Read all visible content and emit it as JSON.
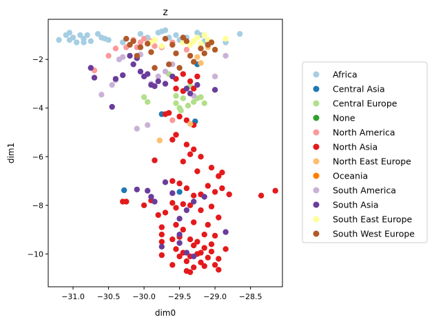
{
  "chart_data": {
    "type": "scatter",
    "title": "z",
    "xlabel": "dim0",
    "ylabel": "dim1",
    "xlim": [
      -31.35,
      -28.05
    ],
    "ylim": [
      -11.35,
      -0.35
    ],
    "xticks": [
      -31.0,
      -30.5,
      -30.0,
      -29.5,
      -29.0,
      -28.5
    ],
    "xtick_labels": [
      "−31.0",
      "−30.5",
      "−30.0",
      "−29.5",
      "−29.0",
      "−28.5"
    ],
    "yticks": [
      -10,
      -8,
      -6,
      -4,
      -2
    ],
    "ytick_labels": [
      "−10",
      "−8",
      "−6",
      "−4",
      "−2"
    ],
    "grid": false,
    "legend_position": "right",
    "series": [
      {
        "name": "Africa",
        "color": "#a6cee3",
        "points": [
          [
            -31.2,
            -1.2
          ],
          [
            -31.1,
            -1.0
          ],
          [
            -31.05,
            -0.9
          ],
          [
            -31.0,
            -1.1
          ],
          [
            -30.95,
            -1.3
          ],
          [
            -30.9,
            -1.0
          ],
          [
            -30.85,
            -1.15
          ],
          [
            -30.8,
            -1.0
          ],
          [
            -30.75,
            -1.25
          ],
          [
            -30.65,
            -0.95
          ],
          [
            -30.6,
            -1.1
          ],
          [
            -30.55,
            -1.15
          ],
          [
            -30.5,
            -1.2
          ],
          [
            -30.3,
            -1.3
          ],
          [
            -30.05,
            -0.95
          ],
          [
            -29.95,
            -1.1
          ],
          [
            -29.8,
            -0.9
          ],
          [
            -29.75,
            -0.85
          ],
          [
            -29.7,
            -0.8
          ],
          [
            -29.65,
            -1.1
          ],
          [
            -29.55,
            -1.0
          ],
          [
            -29.5,
            -1.2
          ],
          [
            -29.4,
            -1.1
          ],
          [
            -29.25,
            -0.9
          ],
          [
            -29.2,
            -1.0
          ],
          [
            -29.15,
            -1.25
          ],
          [
            -28.85,
            -1.3
          ],
          [
            -28.65,
            -0.95
          ],
          [
            -31.05,
            -1.2
          ],
          [
            -30.85,
            -1.3
          ]
        ]
      },
      {
        "name": "Central Asia",
        "color": "#1f78b4",
        "points": [
          [
            -30.28,
            -7.38
          ],
          [
            -29.75,
            -4.25
          ],
          [
            -29.5,
            -7.45
          ],
          [
            -29.28,
            -4.55
          ],
          [
            -29.25,
            -2.2
          ]
        ]
      },
      {
        "name": "Central Europe",
        "color": "#b2df8a",
        "points": [
          [
            -30.0,
            -3.55
          ],
          [
            -29.95,
            -3.75
          ],
          [
            -29.55,
            -3.5
          ],
          [
            -29.55,
            -3.8
          ],
          [
            -29.5,
            -4.0
          ],
          [
            -29.48,
            -4.1
          ],
          [
            -29.45,
            -3.6
          ],
          [
            -29.38,
            -3.9
          ],
          [
            -29.3,
            -3.75
          ],
          [
            -29.25,
            -3.6
          ],
          [
            -29.2,
            -3.55
          ],
          [
            -29.15,
            -3.8
          ],
          [
            -29.65,
            -2.6
          ],
          [
            -29.35,
            -3.1
          ]
        ]
      },
      {
        "name": "North America",
        "color": "#fb9a99",
        "points": [
          [
            -30.7,
            -2.45
          ],
          [
            -30.5,
            -1.85
          ],
          [
            -30.4,
            -1.55
          ],
          [
            -30.25,
            -1.5
          ],
          [
            -30.15,
            -1.2
          ],
          [
            -30.1,
            -1.5
          ],
          [
            -30.05,
            -1.3
          ],
          [
            -30.0,
            -1.15
          ],
          [
            -29.95,
            -1.35
          ],
          [
            -29.9,
            -1.25
          ],
          [
            -29.85,
            -1.45
          ],
          [
            -29.75,
            -1.5
          ],
          [
            -29.6,
            -1.3
          ],
          [
            -29.4,
            -1.6
          ],
          [
            -29.6,
            -4.5
          ]
        ]
      },
      {
        "name": "North Asia",
        "color": "#e31a1c",
        "points": [
          [
            -29.55,
            -3.2
          ],
          [
            -29.45,
            -3.3
          ],
          [
            -29.35,
            -2.9
          ],
          [
            -29.3,
            -3.2
          ],
          [
            -29.25,
            -2.7
          ],
          [
            -29.55,
            -2.8
          ],
          [
            -29.45,
            -2.6
          ],
          [
            -29.7,
            -4.25
          ],
          [
            -29.65,
            -4.2
          ],
          [
            -29.5,
            -4.35
          ],
          [
            -29.4,
            -4.5
          ],
          [
            -29.3,
            -4.7
          ],
          [
            -29.6,
            -5.3
          ],
          [
            -29.55,
            -5.1
          ],
          [
            -29.4,
            -5.5
          ],
          [
            -29.35,
            -5.9
          ],
          [
            -29.3,
            -5.7
          ],
          [
            -29.45,
            -6.2
          ],
          [
            -29.25,
            -6.6
          ],
          [
            -29.2,
            -6.0
          ],
          [
            -29.05,
            -6.45
          ],
          [
            -28.95,
            -6.8
          ],
          [
            -28.9,
            -6.65
          ],
          [
            -29.85,
            -6.15
          ],
          [
            -29.6,
            -7.0
          ],
          [
            -29.5,
            -7.1
          ],
          [
            -29.4,
            -7.3
          ],
          [
            -29.3,
            -7.6
          ],
          [
            -29.2,
            -7.55
          ],
          [
            -29.1,
            -7.2
          ],
          [
            -29.0,
            -7.45
          ],
          [
            -28.9,
            -7.3
          ],
          [
            -28.8,
            -7.55
          ],
          [
            -28.35,
            -7.6
          ],
          [
            -28.15,
            -7.4
          ],
          [
            -30.3,
            -7.85
          ],
          [
            -30.25,
            -7.85
          ],
          [
            -30.0,
            -8.0
          ],
          [
            -29.9,
            -7.8
          ],
          [
            -29.8,
            -8.4
          ],
          [
            -29.7,
            -8.3
          ],
          [
            -29.6,
            -7.9
          ],
          [
            -29.55,
            -8.1
          ],
          [
            -29.45,
            -7.95
          ],
          [
            -29.35,
            -8.0
          ],
          [
            -29.2,
            -8.2
          ],
          [
            -29.05,
            -8.05
          ],
          [
            -28.95,
            -8.5
          ],
          [
            -29.75,
            -8.9
          ],
          [
            -29.75,
            -9.2
          ],
          [
            -29.75,
            -9.5
          ],
          [
            -29.55,
            -8.8
          ],
          [
            -29.5,
            -9.3
          ],
          [
            -29.45,
            -9.0
          ],
          [
            -29.35,
            -9.4
          ],
          [
            -29.3,
            -8.7
          ],
          [
            -29.25,
            -9.5
          ],
          [
            -29.15,
            -9.2
          ],
          [
            -29.1,
            -8.8
          ],
          [
            -29.05,
            -9.6
          ],
          [
            -29.0,
            -9.25
          ],
          [
            -29.55,
            -9.8
          ],
          [
            -29.5,
            -10.1
          ],
          [
            -29.45,
            -9.95
          ],
          [
            -29.4,
            -10.3
          ],
          [
            -29.35,
            -10.1
          ],
          [
            -29.3,
            -10.55
          ],
          [
            -29.25,
            -10.0
          ],
          [
            -29.2,
            -10.35
          ],
          [
            -29.15,
            -9.75
          ],
          [
            -29.1,
            -10.15
          ],
          [
            -29.05,
            -9.9
          ],
          [
            -29.0,
            -10.45
          ],
          [
            -28.95,
            -10.65
          ],
          [
            -28.95,
            -10.2
          ],
          [
            -28.85,
            -9.8
          ],
          [
            -29.75,
            -10.05
          ],
          [
            -29.6,
            -10.45
          ],
          [
            -29.4,
            -10.7
          ],
          [
            -29.15,
            -10.5
          ],
          [
            -29.35,
            -10.75
          ],
          [
            -29.6,
            -9.4
          ],
          [
            -29.2,
            -9.95
          ],
          [
            -29.3,
            -9.65
          ]
        ]
      },
      {
        "name": "North East Europe",
        "color": "#fdbf6f",
        "points": [
          [
            -29.78,
            -5.33
          ],
          [
            -29.35,
            -4.65
          ],
          [
            -29.25,
            -1.9
          ],
          [
            -29.2,
            -2.15
          ],
          [
            -29.1,
            -1.5
          ]
        ]
      },
      {
        "name": "South America",
        "color": "#cab2d6",
        "points": [
          [
            -30.6,
            -3.45
          ],
          [
            -30.45,
            -3.05
          ],
          [
            -30.4,
            -2.85
          ],
          [
            -30.35,
            -2.0
          ],
          [
            -30.3,
            -1.9
          ],
          [
            -30.1,
            -4.85
          ],
          [
            -29.95,
            -4.7
          ],
          [
            -29.9,
            -3.0
          ],
          [
            -29.8,
            -2.7
          ],
          [
            -29.7,
            -2.5
          ],
          [
            -29.6,
            -2.2
          ],
          [
            -29.3,
            -3.5
          ],
          [
            -29.0,
            -2.7
          ],
          [
            -28.85,
            -1.85
          ],
          [
            -30.05,
            -1.8
          ]
        ]
      },
      {
        "name": "South Asia",
        "color": "#6a3d9a",
        "points": [
          [
            -30.75,
            -2.35
          ],
          [
            -30.7,
            -2.75
          ],
          [
            -30.45,
            -3.95
          ],
          [
            -30.4,
            -2.8
          ],
          [
            -30.3,
            -2.65
          ],
          [
            -30.2,
            -1.85
          ],
          [
            -30.15,
            -2.2
          ],
          [
            -30.1,
            -1.95
          ],
          [
            -30.05,
            -2.5
          ],
          [
            -30.0,
            -2.7
          ],
          [
            -29.95,
            -2.6
          ],
          [
            -29.9,
            -3.05
          ],
          [
            -29.85,
            -3.1
          ],
          [
            -29.8,
            -2.9
          ],
          [
            -29.7,
            -3.0
          ],
          [
            -29.6,
            -2.7
          ],
          [
            -29.4,
            -3.2
          ],
          [
            -29.35,
            -3.4
          ],
          [
            -29.25,
            -3.05
          ],
          [
            -29.0,
            -3.25
          ],
          [
            -30.1,
            -7.35
          ],
          [
            -29.95,
            -7.4
          ],
          [
            -29.9,
            -7.65
          ],
          [
            -29.85,
            -7.85
          ],
          [
            -29.7,
            -7.05
          ],
          [
            -29.6,
            -7.5
          ],
          [
            -29.5,
            -8.55
          ],
          [
            -29.4,
            -8.2
          ],
          [
            -29.3,
            -7.85
          ],
          [
            -29.5,
            -9.2
          ],
          [
            -29.5,
            -9.55
          ],
          [
            -29.4,
            -9.95
          ],
          [
            -29.75,
            -9.7
          ],
          [
            -29.3,
            -10.1
          ],
          [
            -28.85,
            -9.1
          ],
          [
            -29.15,
            -7.65
          ]
        ]
      },
      {
        "name": "South East Europe",
        "color": "#ffff99",
        "points": [
          [
            -29.9,
            -1.3
          ],
          [
            -29.85,
            -1.2
          ],
          [
            -29.45,
            -1.3
          ],
          [
            -29.35,
            -1.4
          ],
          [
            -29.3,
            -1.25
          ],
          [
            -29.25,
            -1.1
          ],
          [
            -29.2,
            -1.35
          ],
          [
            -29.15,
            -1.0
          ],
          [
            -29.1,
            -1.2
          ],
          [
            -28.85,
            -1.15
          ],
          [
            -29.75,
            -1.45
          ]
        ]
      },
      {
        "name": "South West Europe",
        "color": "#b15928",
        "points": [
          [
            -30.25,
            -1.15
          ],
          [
            -30.2,
            -1.4
          ],
          [
            -30.15,
            -1.25
          ],
          [
            -30.05,
            -1.5
          ],
          [
            -29.95,
            -1.35
          ],
          [
            -29.9,
            -1.7
          ],
          [
            -29.85,
            -2.35
          ],
          [
            -29.7,
            -1.15
          ],
          [
            -29.6,
            -1.4
          ],
          [
            -29.55,
            -1.75
          ],
          [
            -29.5,
            -2.35
          ],
          [
            -29.45,
            -1.1
          ],
          [
            -29.4,
            -1.25
          ],
          [
            -29.35,
            -1.85
          ],
          [
            -29.3,
            -2.1
          ],
          [
            -29.2,
            -1.55
          ],
          [
            -29.15,
            -1.75
          ],
          [
            -29.1,
            -1.4
          ],
          [
            -29.05,
            -1.3
          ],
          [
            -29.0,
            -1.6
          ],
          [
            -30.1,
            -1.85
          ],
          [
            -29.65,
            -2.2
          ]
        ]
      },
      {
        "name": "None",
        "color": "#33a02c",
        "points": []
      },
      {
        "name": "Oceania",
        "color": "#ff7f00",
        "points": []
      }
    ],
    "legend_order": [
      "Africa",
      "Central Asia",
      "Central Europe",
      "None",
      "North America",
      "North Asia",
      "North East Europe",
      "Oceania",
      "South America",
      "South Asia",
      "South East Europe",
      "South West Europe"
    ]
  }
}
